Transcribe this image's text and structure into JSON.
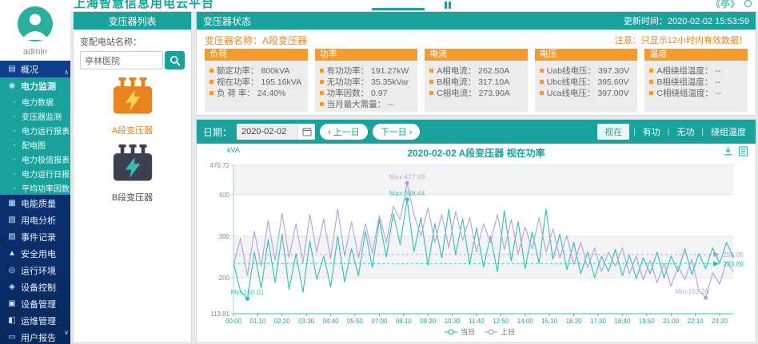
{
  "topbar": {
    "title": "上海智慧信息用电云平台",
    "right_text": "《亭》",
    "accent_color": "#19a29a"
  },
  "sidebar": {
    "user": "admin",
    "items": [
      {
        "label": "概况",
        "icon": "overview-icon",
        "level": 1,
        "active": false
      },
      {
        "label": "电力监测",
        "icon": "power-monitor-icon",
        "level": 1,
        "active": true
      },
      {
        "label": "电力数据",
        "level": 2
      },
      {
        "label": "变压器监测",
        "level": 2
      },
      {
        "label": "电力运行报表",
        "level": 2
      },
      {
        "label": "配电图",
        "level": 2
      },
      {
        "label": "电力极值报表",
        "level": 2
      },
      {
        "label": "电力运行日报",
        "level": 2
      },
      {
        "label": "平均功率因数",
        "level": 2
      },
      {
        "label": "电能质量",
        "icon": "energy-quality-icon",
        "level": 1,
        "active": false
      },
      {
        "label": "用电分析",
        "icon": "analysis-icon",
        "level": 1,
        "active": false
      },
      {
        "label": "事件记录",
        "icon": "event-log-icon",
        "level": 1,
        "active": false
      },
      {
        "label": "安全用电",
        "icon": "safety-icon",
        "level": 1,
        "active": false
      },
      {
        "label": "运行环境",
        "icon": "environment-icon",
        "level": 1,
        "active": false
      },
      {
        "label": "设备控制",
        "icon": "device-control-icon",
        "level": 1,
        "active": false
      },
      {
        "label": "设备管理",
        "icon": "device-manage-icon",
        "level": 1,
        "active": false
      },
      {
        "label": "运维管理",
        "icon": "maintenance-icon",
        "level": 1,
        "active": false
      },
      {
        "label": "用户报告",
        "icon": "report-icon",
        "level": 1,
        "active": false
      }
    ]
  },
  "transformer_list": {
    "header": "变压器列表",
    "search_label": "变配电站名称：",
    "search_value": "亭林医院",
    "items": [
      {
        "name": "A段变压器",
        "active": true,
        "body_color": "#e8831d",
        "bolt_color": "#ffd34d",
        "label_color": "#e8831d"
      },
      {
        "name": "B段变压器",
        "active": false,
        "body_color": "#3c4150",
        "bolt_color": "#2fbfb3",
        "label_color": "#4a4f5e"
      }
    ]
  },
  "status_panel": {
    "header": "变压器状态",
    "update_label": "更新时间：",
    "update_value": "2020-02-02 15:53:59",
    "name_label": "变压器名称：",
    "name_value": "A段变压器",
    "notice": "注意：只显示12小时内有效数据！",
    "groups": [
      {
        "title": "负荷",
        "items": [
          {
            "k": "额定功率",
            "v": "800kVA"
          },
          {
            "k": "视在功率",
            "v": "195.16kVA"
          },
          {
            "k": "负 荷 率",
            "v": "24.40%"
          }
        ]
      },
      {
        "title": "功率",
        "items": [
          {
            "k": "有功功率",
            "v": "191.27kW"
          },
          {
            "k": "无功功率",
            "v": "35.35kVar"
          },
          {
            "k": "功率因数",
            "v": "0.97"
          },
          {
            "k": "当月最大需量",
            "v": "--"
          }
        ]
      },
      {
        "title": "电流",
        "items": [
          {
            "k": "A相电流",
            "v": "262.50A"
          },
          {
            "k": "B相电流",
            "v": "317.10A"
          },
          {
            "k": "C相电流",
            "v": "273.90A"
          }
        ]
      },
      {
        "title": "电压",
        "items": [
          {
            "k": "Uab线电压",
            "v": "397.30V"
          },
          {
            "k": "Ubc线电压",
            "v": "395.60V"
          },
          {
            "k": "Uca线电压",
            "v": "397.00V"
          }
        ]
      },
      {
        "title": "温度",
        "items": [
          {
            "k": "A相绕组温度",
            "v": "--"
          },
          {
            "k": "B相绕组温度",
            "v": "--"
          },
          {
            "k": "C相绕组温度",
            "v": "--"
          }
        ]
      }
    ]
  },
  "chart_panel": {
    "date_label": "日期：",
    "date_value": "2020-02-02",
    "prev_chevron": "‹",
    "next_chevron": "›",
    "prev_label": "上一日",
    "next_label": "下一日",
    "modes": [
      "视在",
      "有功",
      "无功",
      "绕组温度"
    ],
    "active_mode": "视在"
  },
  "chart_data": {
    "type": "line",
    "title": "2020-02-02  A段变压器  视在功率",
    "ylabel": "kVA",
    "ylim": [
      113.81,
      470.72
    ],
    "yticks": [
      113.81,
      200,
      300,
      400,
      470.72
    ],
    "xticks": [
      "00:00",
      "01:10",
      "02:20",
      "03:30",
      "04:40",
      "05:50",
      "07:00",
      "08:10",
      "09:20",
      "10:30",
      "11:40",
      "12:50",
      "14:00",
      "15:10",
      "16:20",
      "17:30",
      "18:40",
      "19:50",
      "21:00",
      "22:10",
      "23:20"
    ],
    "x_step_minutes": 20,
    "grid": true,
    "legend_position": "bottom",
    "series": [
      {
        "name": "当日",
        "color": "#2fc0b4",
        "avg": 233.89,
        "max": {
          "label": "Max:388.44",
          "minute": 500,
          "value": 388.44
        },
        "min": {
          "label": "Min:150.01",
          "minute": 40,
          "value": 150.01
        },
        "values": [
          235,
          168,
          150.01,
          262,
          175,
          292,
          188,
          305,
          172,
          258,
          165,
          288,
          196,
          252,
          178,
          300,
          190,
          270,
          205,
          312,
          225,
          340,
          250,
          355,
          280,
          388.44,
          262,
          345,
          230,
          330,
          248,
          365,
          255,
          342,
          232,
          320,
          226,
          300,
          215,
          362,
          240,
          335,
          222,
          310,
          235,
          365,
          245,
          305,
          220,
          285,
          210,
          262,
          200,
          252,
          215,
          268,
          205,
          255,
          198,
          248,
          210,
          262,
          200,
          252,
          215,
          270,
          208,
          258,
          222,
          272,
          235,
          285,
          248
        ]
      },
      {
        "name": "上日",
        "color": "#b2a0e2",
        "avg": 256.05,
        "max": {
          "label": "Max:427.93",
          "minute": 500,
          "value": 427.93
        },
        "min": {
          "label": "Min:152.26",
          "minute": 1360,
          "value": 152.26
        },
        "values": [
          230,
          295,
          205,
          312,
          228,
          338,
          242,
          355,
          248,
          330,
          236,
          352,
          262,
          342,
          246,
          365,
          252,
          335,
          248,
          330,
          260,
          350,
          285,
          372,
          340,
          427.93,
          352,
          300,
          368,
          285,
          352,
          272,
          360,
          290,
          345,
          262,
          330,
          285,
          352,
          268,
          340,
          258,
          322,
          270,
          345,
          262,
          318,
          248,
          302,
          232,
          285,
          225,
          272,
          215,
          262,
          228,
          272,
          210,
          252,
          195,
          242,
          188,
          235,
          180,
          228,
          196,
          245,
          170,
          152.26,
          212,
          185,
          238,
          215
        ]
      }
    ]
  }
}
